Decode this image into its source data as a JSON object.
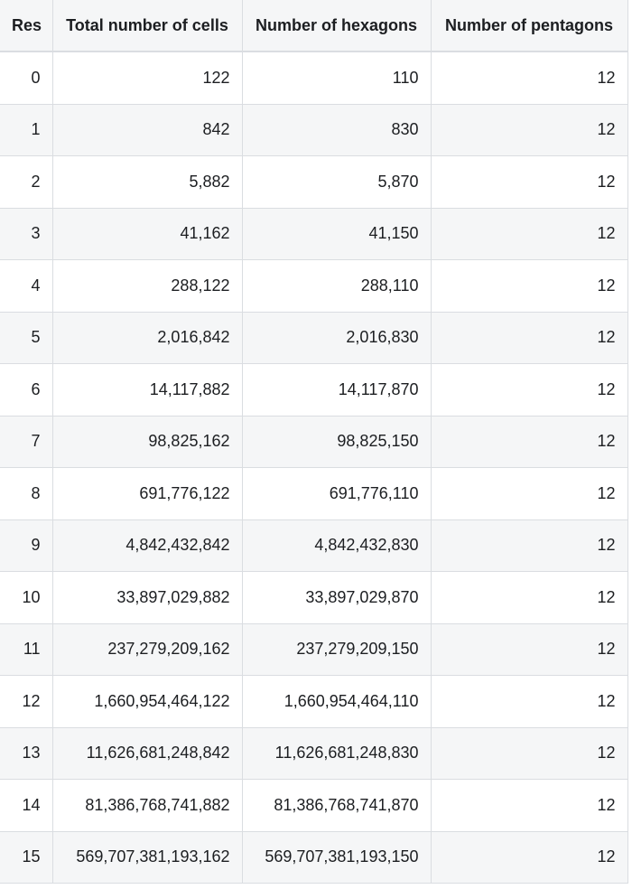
{
  "table": {
    "headers": [
      "Res",
      "Total number of cells",
      "Number of hexagons",
      "Number of pentagons"
    ],
    "rows": [
      [
        "0",
        "122",
        "110",
        "12"
      ],
      [
        "1",
        "842",
        "830",
        "12"
      ],
      [
        "2",
        "5,882",
        "5,870",
        "12"
      ],
      [
        "3",
        "41,162",
        "41,150",
        "12"
      ],
      [
        "4",
        "288,122",
        "288,110",
        "12"
      ],
      [
        "5",
        "2,016,842",
        "2,016,830",
        "12"
      ],
      [
        "6",
        "14,117,882",
        "14,117,870",
        "12"
      ],
      [
        "7",
        "98,825,162",
        "98,825,150",
        "12"
      ],
      [
        "8",
        "691,776,122",
        "691,776,110",
        "12"
      ],
      [
        "9",
        "4,842,432,842",
        "4,842,432,830",
        "12"
      ],
      [
        "10",
        "33,897,029,882",
        "33,897,029,870",
        "12"
      ],
      [
        "11",
        "237,279,209,162",
        "237,279,209,150",
        "12"
      ],
      [
        "12",
        "1,660,954,464,122",
        "1,660,954,464,110",
        "12"
      ],
      [
        "13",
        "11,626,681,248,842",
        "11,626,681,248,830",
        "12"
      ],
      [
        "14",
        "81,386,768,741,882",
        "81,386,768,741,870",
        "12"
      ],
      [
        "15",
        "569,707,381,193,162",
        "569,707,381,193,150",
        "12"
      ]
    ]
  }
}
